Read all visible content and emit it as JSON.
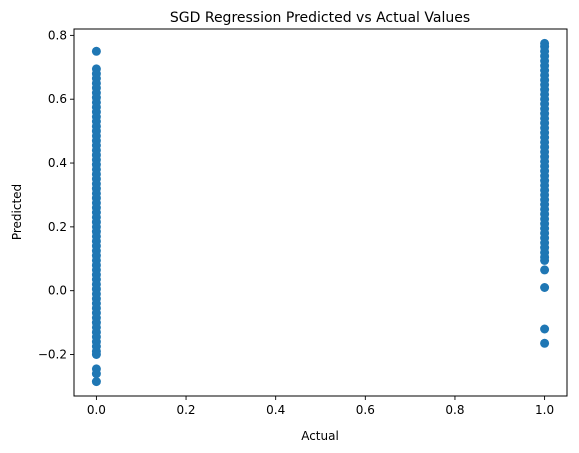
{
  "chart_data": {
    "type": "scatter",
    "title": "SGD Regression Predicted vs Actual Values",
    "xlabel": "Actual",
    "ylabel": "Predicted",
    "xlim": [
      -0.05,
      1.05
    ],
    "ylim": [
      -0.33,
      0.82
    ],
    "x_ticks": [
      0.0,
      0.2,
      0.4,
      0.6,
      0.8,
      1.0
    ],
    "x_tick_labels": [
      "0.0",
      "0.2",
      "0.4",
      "0.6",
      "0.8",
      "1.0"
    ],
    "y_ticks": [
      -0.2,
      0.0,
      0.2,
      0.4,
      0.6,
      0.8
    ],
    "y_tick_labels": [
      "−0.2",
      "0.0",
      "0.2",
      "0.4",
      "0.6",
      "0.8"
    ],
    "grid": false,
    "marker_color": "#1f77b4",
    "series": [
      {
        "points": [
          [
            0,
            0.75
          ],
          [
            0,
            0.695
          ],
          [
            0,
            0.68
          ],
          [
            0,
            0.665
          ],
          [
            0,
            0.65
          ],
          [
            0,
            0.635
          ],
          [
            0,
            0.62
          ],
          [
            0,
            0.605
          ],
          [
            0,
            0.59
          ],
          [
            0,
            0.575
          ],
          [
            0,
            0.56
          ],
          [
            0,
            0.545
          ],
          [
            0,
            0.53
          ],
          [
            0,
            0.515
          ],
          [
            0,
            0.5
          ],
          [
            0,
            0.485
          ],
          [
            0,
            0.47
          ],
          [
            0,
            0.455
          ],
          [
            0,
            0.44
          ],
          [
            0,
            0.425
          ],
          [
            0,
            0.41
          ],
          [
            0,
            0.395
          ],
          [
            0,
            0.38
          ],
          [
            0,
            0.365
          ],
          [
            0,
            0.35
          ],
          [
            0,
            0.335
          ],
          [
            0,
            0.32
          ],
          [
            0,
            0.305
          ],
          [
            0,
            0.29
          ],
          [
            0,
            0.275
          ],
          [
            0,
            0.26
          ],
          [
            0,
            0.245
          ],
          [
            0,
            0.23
          ],
          [
            0,
            0.215
          ],
          [
            0,
            0.2
          ],
          [
            0,
            0.185
          ],
          [
            0,
            0.17
          ],
          [
            0,
            0.155
          ],
          [
            0,
            0.14
          ],
          [
            0,
            0.125
          ],
          [
            0,
            0.11
          ],
          [
            0,
            0.095
          ],
          [
            0,
            0.08
          ],
          [
            0,
            0.065
          ],
          [
            0,
            0.05
          ],
          [
            0,
            0.035
          ],
          [
            0,
            0.02
          ],
          [
            0,
            0.005
          ],
          [
            0,
            -0.01
          ],
          [
            0,
            -0.025
          ],
          [
            0,
            -0.04
          ],
          [
            0,
            -0.055
          ],
          [
            0,
            -0.07
          ],
          [
            0,
            -0.085
          ],
          [
            0,
            -0.1
          ],
          [
            0,
            -0.115
          ],
          [
            0,
            -0.13
          ],
          [
            0,
            -0.145
          ],
          [
            0,
            -0.16
          ],
          [
            0,
            -0.175
          ],
          [
            0,
            -0.19
          ],
          [
            0,
            -0.2
          ],
          [
            0,
            -0.245
          ],
          [
            0,
            -0.26
          ],
          [
            0,
            -0.285
          ],
          [
            1,
            0.775
          ],
          [
            1,
            0.765
          ],
          [
            1,
            0.75
          ],
          [
            1,
            0.735
          ],
          [
            1,
            0.72
          ],
          [
            1,
            0.705
          ],
          [
            1,
            0.69
          ],
          [
            1,
            0.675
          ],
          [
            1,
            0.66
          ],
          [
            1,
            0.645
          ],
          [
            1,
            0.63
          ],
          [
            1,
            0.615
          ],
          [
            1,
            0.6
          ],
          [
            1,
            0.585
          ],
          [
            1,
            0.57
          ],
          [
            1,
            0.555
          ],
          [
            1,
            0.54
          ],
          [
            1,
            0.525
          ],
          [
            1,
            0.51
          ],
          [
            1,
            0.495
          ],
          [
            1,
            0.48
          ],
          [
            1,
            0.465
          ],
          [
            1,
            0.45
          ],
          [
            1,
            0.435
          ],
          [
            1,
            0.42
          ],
          [
            1,
            0.405
          ],
          [
            1,
            0.39
          ],
          [
            1,
            0.375
          ],
          [
            1,
            0.36
          ],
          [
            1,
            0.345
          ],
          [
            1,
            0.33
          ],
          [
            1,
            0.315
          ],
          [
            1,
            0.3
          ],
          [
            1,
            0.285
          ],
          [
            1,
            0.27
          ],
          [
            1,
            0.255
          ],
          [
            1,
            0.24
          ],
          [
            1,
            0.225
          ],
          [
            1,
            0.21
          ],
          [
            1,
            0.195
          ],
          [
            1,
            0.18
          ],
          [
            1,
            0.165
          ],
          [
            1,
            0.15
          ],
          [
            1,
            0.135
          ],
          [
            1,
            0.12
          ],
          [
            1,
            0.105
          ],
          [
            1,
            0.095
          ],
          [
            1,
            0.065
          ],
          [
            1,
            0.01
          ],
          [
            1,
            -0.12
          ],
          [
            1,
            -0.165
          ]
        ]
      }
    ]
  }
}
